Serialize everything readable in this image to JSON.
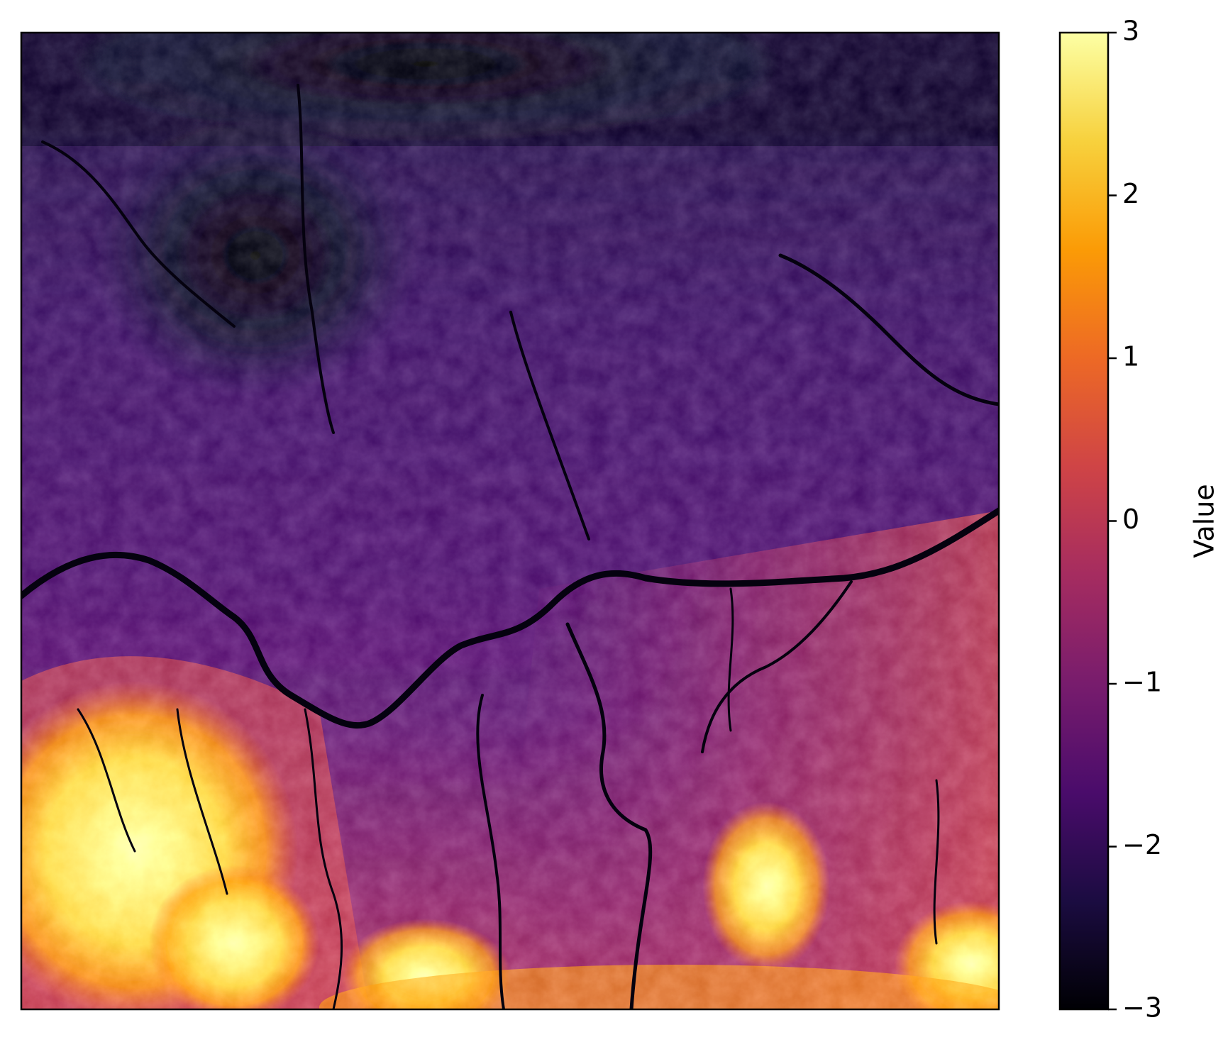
{
  "chart_data": {
    "type": "heatmap",
    "title": "",
    "xlabel": "",
    "ylabel": "",
    "x_ticks": [],
    "y_ticks": [],
    "colormap": "inferno",
    "colormap_stops": [
      "#000004",
      "#1b0c41",
      "#4a0c6b",
      "#781c6d",
      "#a52c60",
      "#cf4446",
      "#ed6925",
      "#fb9b06",
      "#f7d13d",
      "#fcffa4"
    ],
    "colorbar": {
      "label": "Value",
      "range": [
        -3,
        3
      ],
      "ticks": [
        -3,
        -2,
        -1,
        0,
        1,
        2,
        3
      ],
      "tick_labels": [
        "−3",
        "−2",
        "−1",
        "0",
        "1",
        "2",
        "3"
      ]
    },
    "description_of_field": {
      "top_region_level": -2.5,
      "middle_region_level": -1.5,
      "lower_right_level": 0.5,
      "lower_left_peaks_level": 3,
      "bottom_center_peaks_level": 2.5,
      "lower_right_peaks_level": 2.5
    }
  }
}
